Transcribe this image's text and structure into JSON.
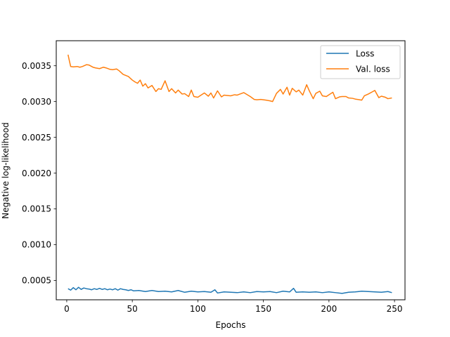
{
  "chart_data": {
    "type": "line",
    "title": "",
    "xlabel": "Epochs",
    "ylabel": "Negative log-likelihood",
    "xlim": [
      -8,
      258
    ],
    "ylim": [
      0.00023,
      0.00385
    ],
    "xticks": [
      0,
      50,
      100,
      150,
      200,
      250
    ],
    "xtick_labels": [
      "0",
      "50",
      "100",
      "150",
      "200",
      "250"
    ],
    "yticks": [
      0.0005,
      0.001,
      0.0015,
      0.002,
      0.0025,
      0.003,
      0.0035
    ],
    "ytick_labels": [
      "0.0005",
      "0.0010",
      "0.0015",
      "0.0020",
      "0.0025",
      "0.0030",
      "0.0035"
    ],
    "grid": false,
    "legend_position": "top-right",
    "series": [
      {
        "name": "Loss",
        "color": "#1f77b4",
        "x": [
          1,
          3,
          5,
          7,
          9,
          11,
          13,
          15,
          17,
          19,
          21,
          23,
          25,
          27,
          29,
          31,
          33,
          35,
          37,
          39,
          41,
          43,
          45,
          47,
          49,
          51,
          55,
          60,
          65,
          70,
          75,
          80,
          85,
          90,
          95,
          100,
          105,
          110,
          113,
          115,
          120,
          125,
          130,
          135,
          140,
          145,
          150,
          155,
          160,
          165,
          170,
          173,
          175,
          180,
          185,
          190,
          195,
          200,
          205,
          210,
          215,
          220,
          225,
          230,
          235,
          240,
          245,
          248
        ],
        "y": [
          0.000385,
          0.000365,
          0.0004,
          0.00037,
          0.000405,
          0.000375,
          0.000395,
          0.000385,
          0.00038,
          0.00037,
          0.000385,
          0.000375,
          0.00039,
          0.000375,
          0.000385,
          0.00037,
          0.00038,
          0.00037,
          0.000385,
          0.000365,
          0.000385,
          0.000375,
          0.00037,
          0.00036,
          0.00037,
          0.000355,
          0.00036,
          0.000345,
          0.00036,
          0.000345,
          0.00035,
          0.00034,
          0.00036,
          0.000335,
          0.00035,
          0.00034,
          0.000345,
          0.000335,
          0.00037,
          0.000325,
          0.00034,
          0.000335,
          0.00033,
          0.00034,
          0.00033,
          0.000345,
          0.00034,
          0.000345,
          0.00033,
          0.00035,
          0.00034,
          0.00039,
          0.000335,
          0.00034,
          0.000335,
          0.00034,
          0.00033,
          0.00034,
          0.00033,
          0.00032,
          0.000335,
          0.00034,
          0.00035,
          0.000345,
          0.00034,
          0.000335,
          0.000345,
          0.00033
        ]
      },
      {
        "name": "Val. loss",
        "color": "#ff7f0e",
        "x": [
          1,
          2,
          3,
          5,
          8,
          10,
          12,
          15,
          17,
          20,
          22,
          25,
          28,
          30,
          33,
          35,
          38,
          40,
          43,
          45,
          47,
          50,
          52,
          54,
          56,
          58,
          60,
          62,
          65,
          68,
          70,
          72,
          75,
          78,
          80,
          83,
          85,
          88,
          90,
          93,
          95,
          97,
          100,
          102,
          105,
          108,
          110,
          112,
          115,
          118,
          120,
          125,
          128,
          130,
          135,
          140,
          143,
          145,
          148,
          150,
          152,
          155,
          157,
          160,
          163,
          165,
          168,
          170,
          172,
          175,
          177,
          180,
          183,
          185,
          188,
          190,
          193,
          195,
          198,
          200,
          203,
          205,
          208,
          210,
          213,
          215,
          218,
          220,
          225,
          227,
          230,
          233,
          235,
          238,
          240,
          243,
          245,
          248
        ],
        "y": [
          0.003655,
          0.00357,
          0.00349,
          0.003485,
          0.00349,
          0.00348,
          0.00349,
          0.003515,
          0.00351,
          0.00348,
          0.00347,
          0.00346,
          0.00348,
          0.00347,
          0.00345,
          0.003445,
          0.003455,
          0.00343,
          0.00338,
          0.003365,
          0.00335,
          0.0033,
          0.003275,
          0.003255,
          0.0033,
          0.003215,
          0.00325,
          0.00319,
          0.003225,
          0.00314,
          0.00318,
          0.00317,
          0.00329,
          0.00314,
          0.00318,
          0.00312,
          0.00316,
          0.003105,
          0.00311,
          0.00307,
          0.00316,
          0.00307,
          0.00306,
          0.003085,
          0.00312,
          0.003075,
          0.00312,
          0.00305,
          0.00315,
          0.003065,
          0.00309,
          0.00308,
          0.003095,
          0.00309,
          0.003125,
          0.00307,
          0.00303,
          0.003025,
          0.00303,
          0.003025,
          0.00302,
          0.00301,
          0.003,
          0.003115,
          0.00317,
          0.003105,
          0.0032,
          0.00309,
          0.003185,
          0.003135,
          0.00316,
          0.00309,
          0.003235,
          0.00315,
          0.00304,
          0.003115,
          0.003145,
          0.00308,
          0.00307,
          0.003095,
          0.00313,
          0.00304,
          0.003065,
          0.00307,
          0.00307,
          0.00305,
          0.003045,
          0.003035,
          0.00302,
          0.00308,
          0.003105,
          0.003135,
          0.003155,
          0.003055,
          0.003075,
          0.00306,
          0.00304,
          0.00305
        ]
      }
    ]
  }
}
